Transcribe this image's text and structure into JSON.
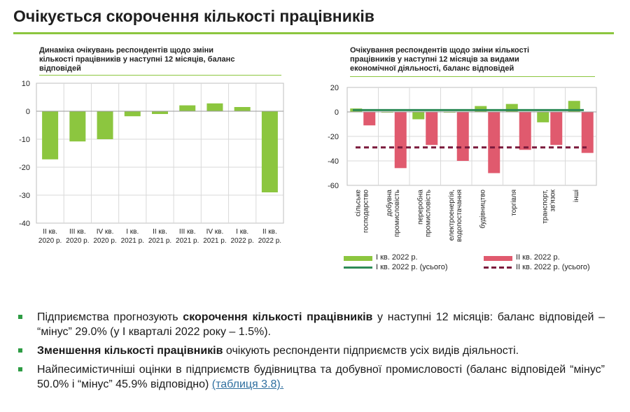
{
  "page": {
    "title": "Очікується скорочення кількості працівників"
  },
  "left_chart": {
    "title_line1": "Динаміка очікувань респондентів щодо зміни",
    "title_line2": "кількості працівників у наступні 12 місяців, баланс",
    "title_line3": "відповідей"
  },
  "right_chart": {
    "title_line1": "Очікування респондентів щодо зміни кількості",
    "title_line2": "працівників у наступні 12 місяців за видами",
    "title_line3": "економічної діяльності, баланс відповідей"
  },
  "chart_data": [
    {
      "type": "bar",
      "categories": [
        [
          "II кв.",
          "2020 р."
        ],
        [
          "III кв.",
          "2020 р."
        ],
        [
          "IV кв.",
          "2020 р."
        ],
        [
          "I кв.",
          "2021 р."
        ],
        [
          "II кв.",
          "2021 р."
        ],
        [
          "III кв.",
          "2021 р."
        ],
        [
          "IV кв.",
          "2021 р."
        ],
        [
          "I кв.",
          "2022 р."
        ],
        [
          "II кв.",
          "2022 р."
        ]
      ],
      "values": [
        -17.2,
        -10.8,
        -10.0,
        -1.8,
        -1.0,
        2.1,
        2.8,
        1.5,
        -29.0
      ],
      "ylim": [
        -40,
        10
      ],
      "yticks": [
        10,
        0,
        -10,
        -20,
        -30,
        -40
      ],
      "grid": true,
      "colors": {
        "bar": "#8cc63f",
        "grid": "#d9d9d9"
      }
    },
    {
      "type": "bar",
      "categories": [
        "сільське господарство",
        "добувна промисловість",
        "переробна промисловість",
        "електроенергія, водопостачання",
        "будівництво",
        "торгівля",
        "транспорт, зв'язок",
        "інші"
      ],
      "series": [
        {
          "name": "I кв. 2022 р.",
          "values": [
            2.8,
            0.0,
            -6.0,
            0.0,
            4.8,
            6.5,
            -8.5,
            9.0
          ],
          "color": "#8cc63f"
        },
        {
          "name": "II кв. 2022 р.",
          "values": [
            -11.0,
            -45.9,
            -27.0,
            -40.0,
            -50.0,
            -31.0,
            -27.0,
            -33.5
          ],
          "color": "#e05a6e"
        }
      ],
      "reference_lines": [
        {
          "name": "I кв. 2022 р. (усього)",
          "value": 1.5,
          "style": "solid",
          "color": "#2e8b57"
        },
        {
          "name": "II кв. 2022 р. (усього)",
          "value": -29.0,
          "style": "dashed",
          "color": "#7b1a3c"
        }
      ],
      "ylim": [
        -60,
        20
      ],
      "yticks": [
        20,
        0,
        -20,
        -40,
        -60
      ],
      "grid": true,
      "legend_position": "bottom"
    }
  ],
  "bullets": [
    {
      "pre": "Підприємства прогнозують ",
      "bold": "скорочення кількості працівників",
      "post": " у наступні 12 місяців: баланс відповідей – “мінус” 29.0% (у I кварталі 2022 року – 1.5%)."
    },
    {
      "pre": "",
      "bold": "Зменшення кількості працівників",
      "post": " очікують респонденти підприємств усіх видів діяльності."
    },
    {
      "pre": "Найпесимістичніші оцінки в підприємств будівництва та добувної промисловості (баланс відповідей “мінус” 50.0% і “мінус” 45.9% відповідно) ",
      "bold": "",
      "post": "",
      "link": "(таблиця 3.8)."
    }
  ]
}
